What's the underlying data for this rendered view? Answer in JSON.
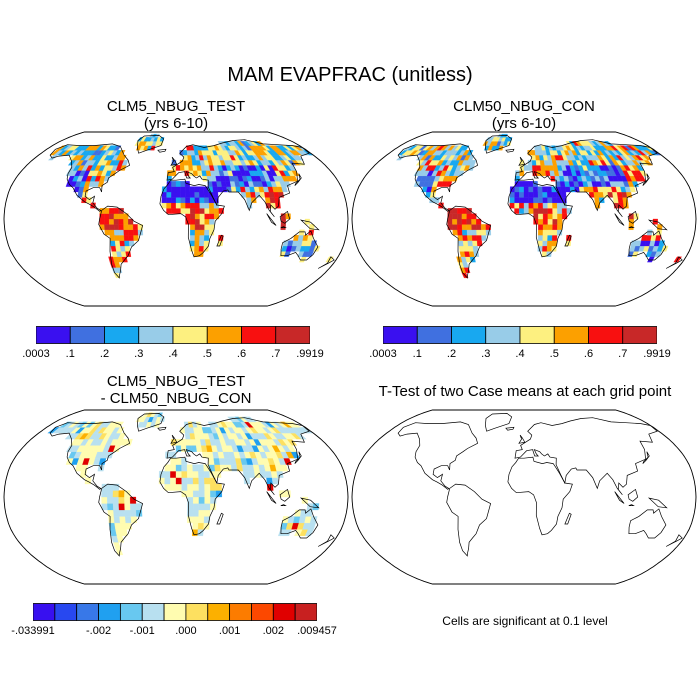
{
  "figure": {
    "title": "MAM EVAPFRAC (unitless)"
  },
  "panels": {
    "test": {
      "title_line1": "CLM5_NBUG_TEST",
      "title_line2": "(yrs 6-10)"
    },
    "control": {
      "title_line1": "CLM50_NBUG_CON",
      "title_line2": "(yrs 6-10)"
    },
    "diff": {
      "title_line1": "CLM5_NBUG_TEST",
      "title_line2": "- CLM50_NBUG_CON"
    },
    "ttest": {
      "title": "T-Test of two Case means at each grid point",
      "note": "Cells are significant at 0.1 level"
    }
  },
  "colorbars": {
    "abs": {
      "colors": [
        "#3a10f0",
        "#4070e0",
        "#18a8f0",
        "#98cce8",
        "#fdf080",
        "#fca000",
        "#f81010",
        "#c82828"
      ],
      "labels": [
        ".0003",
        ".1",
        ".2",
        ".3",
        ".4",
        ".5",
        ".6",
        ".7",
        ".9919"
      ]
    },
    "diff": {
      "colors": [
        "#3810f0",
        "#2848f0",
        "#3878e8",
        "#20a0f0",
        "#68c8f0",
        "#b8e0f0",
        "#fffcb0",
        "#fde060",
        "#fcb000",
        "#fc7c00",
        "#fc4800",
        "#e00000",
        "#c82020"
      ],
      "labels": [
        {
          "text": "-.033991",
          "index": 0
        },
        {
          "text": "-.002",
          "index": 3
        },
        {
          "text": "-.001",
          "index": 5
        },
        {
          "text": ".000",
          "index": 7
        },
        {
          "text": ".001",
          "index": 9
        },
        {
          "text": ".002",
          "index": 11
        },
        {
          "text": ".009457",
          "index": 13
        }
      ]
    }
  }
}
